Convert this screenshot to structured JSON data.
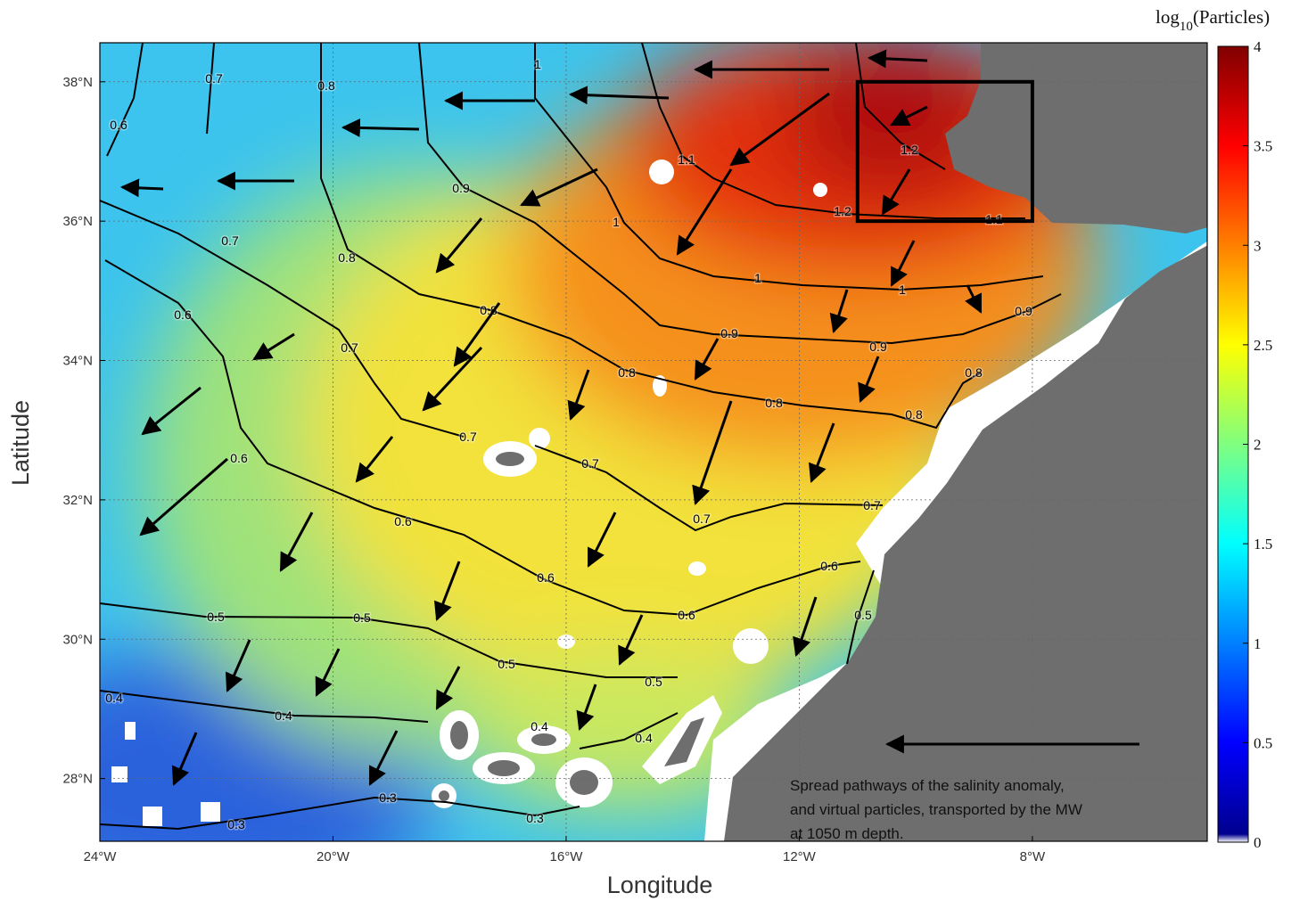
{
  "chart_data": {
    "type": "map",
    "xlabel": "Longitude",
    "ylabel": "Latitude",
    "xlim": [
      -24,
      -5
    ],
    "ylim": [
      27.1,
      38.56
    ],
    "xticks": [
      {
        "value": -24,
        "label": "24°W"
      },
      {
        "value": -20,
        "label": "20°W"
      },
      {
        "value": -16,
        "label": "16°W"
      },
      {
        "value": -12,
        "label": "12°W"
      },
      {
        "value": -8,
        "label": "8°W"
      }
    ],
    "yticks": [
      {
        "value": 28,
        "label": "28°N"
      },
      {
        "value": 30,
        "label": "30°N"
      },
      {
        "value": 32,
        "label": "32°N"
      },
      {
        "value": 34,
        "label": "34°N"
      },
      {
        "value": 36,
        "label": "36°N"
      },
      {
        "value": 38,
        "label": "38°N"
      }
    ],
    "grid": true,
    "contour_levels": [
      0.3,
      0.4,
      0.5,
      0.6,
      0.7,
      0.8,
      0.9,
      1,
      1.1,
      1.2
    ],
    "box": {
      "lon": [
        -11,
        -8
      ],
      "lat": [
        36,
        38
      ]
    },
    "annotation": [
      "Spread pathways of the salinity anomaly,",
      "and virtual particles, transported by the MW",
      "at 1050 m depth."
    ],
    "colorbar": {
      "label": [
        "log",
        "10",
        "(Particles)"
      ],
      "lim": [
        0,
        4
      ],
      "ticks": [
        0,
        0.5,
        1,
        1.5,
        2,
        2.5,
        3,
        3.5,
        4
      ]
    }
  }
}
